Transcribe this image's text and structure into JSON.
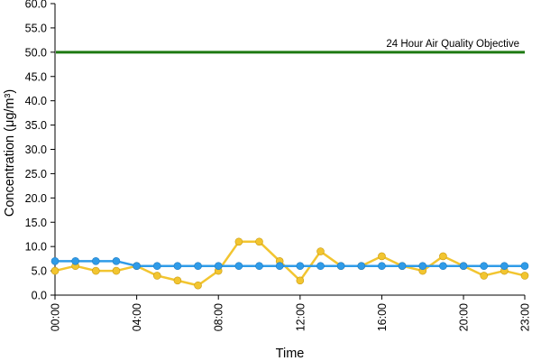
{
  "chart_data": {
    "type": "line",
    "xlabel": "Time",
    "ylabel": "Concentration (μg/m³)",
    "ylim": [
      0,
      60
    ],
    "y_ticks": [
      "0.0",
      "5.0",
      "10.0",
      "15.0",
      "20.0",
      "25.0",
      "30.0",
      "35.0",
      "40.0",
      "45.0",
      "50.0",
      "55.0",
      "60.0"
    ],
    "x_ticks": [
      "00:00",
      "04:00",
      "08:00",
      "12:00",
      "16:00",
      "20:00",
      "23:00"
    ],
    "x_hours": [
      0,
      1,
      2,
      3,
      4,
      5,
      6,
      7,
      8,
      9,
      10,
      11,
      12,
      13,
      14,
      15,
      16,
      17,
      18,
      19,
      20,
      21,
      22,
      23
    ],
    "grid": false,
    "series": [
      {
        "color": "#f2c530",
        "values": [
          5,
          6,
          5,
          5,
          6,
          4,
          3,
          2,
          5,
          11,
          11,
          7,
          3,
          9,
          6,
          6,
          8,
          6,
          5,
          8,
          6,
          4,
          5,
          4
        ]
      },
      {
        "color": "#2f9be8",
        "values": [
          7,
          7,
          7,
          7,
          6,
          6,
          6,
          6,
          6,
          6,
          6,
          6,
          6,
          6,
          6,
          6,
          6,
          6,
          6,
          6,
          6,
          6,
          6,
          6
        ]
      }
    ],
    "objective": {
      "label": "24 Hour Air Quality Objective",
      "value": 50,
      "color": "#1e7a12"
    }
  }
}
